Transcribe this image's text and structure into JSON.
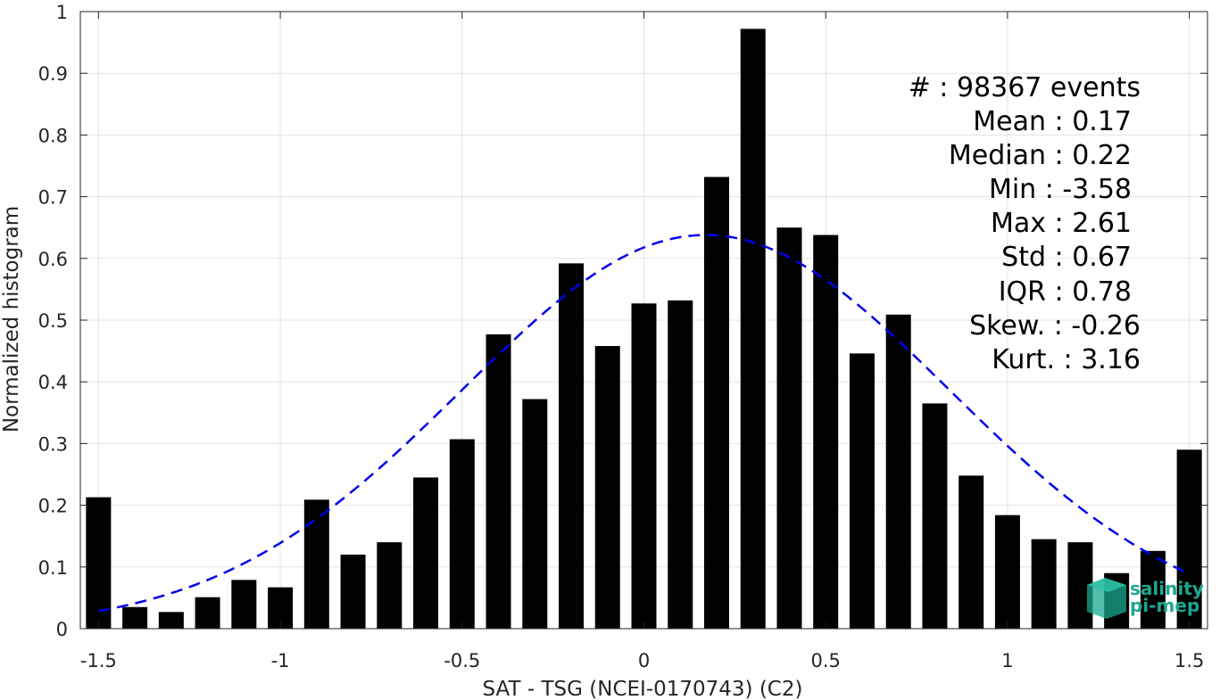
{
  "chart_data": {
    "type": "bar",
    "xlabel": "SAT - TSG (NCEI-0170743) (C2)",
    "ylabel": "Normalized histogram",
    "xlim": [
      -1.55,
      1.55
    ],
    "ylim": [
      0,
      1
    ],
    "grid": true,
    "x_ticks": [
      -1.5,
      -1,
      -0.5,
      0,
      0.5,
      1,
      1.5
    ],
    "x_tick_labels": [
      "-1.5",
      "-1",
      "-0.5",
      "0",
      "0.5",
      "1",
      "1.5"
    ],
    "y_ticks": [
      0,
      0.1,
      0.2,
      0.3,
      0.4,
      0.5,
      0.6,
      0.7,
      0.8,
      0.9,
      1
    ],
    "y_tick_labels": [
      "0",
      "0.1",
      "0.2",
      "0.3",
      "0.4",
      "0.5",
      "0.6",
      "0.7",
      "0.8",
      "0.9",
      "1"
    ],
    "bar_color": "#000000",
    "x": [
      -1.5,
      -1.4,
      -1.3,
      -1.2,
      -1.1,
      -1.0,
      -0.9,
      -0.8,
      -0.7,
      -0.6,
      -0.5,
      -0.4,
      -0.3,
      -0.2,
      -0.1,
      0.0,
      0.1,
      0.2,
      0.3,
      0.4,
      0.5,
      0.6,
      0.7,
      0.8,
      0.9,
      1.0,
      1.1,
      1.2,
      1.3,
      1.4,
      1.5
    ],
    "values": [
      0.213,
      0.035,
      0.027,
      0.051,
      0.079,
      0.067,
      0.209,
      0.12,
      0.14,
      0.245,
      0.307,
      0.477,
      0.372,
      0.592,
      0.458,
      0.527,
      0.532,
      0.732,
      0.972,
      0.65,
      0.638,
      0.446,
      0.509,
      0.365,
      0.248,
      0.184,
      0.145,
      0.14,
      0.09,
      0.126,
      0.29
    ],
    "fit_curve": {
      "type": "gaussian",
      "mean": 0.17,
      "std": 0.67,
      "peak": 0.638,
      "color": "#0000ee",
      "style": "dashed",
      "x_range": [
        -1.5,
        1.5
      ]
    },
    "annotations": [
      "#  : 98367 events",
      "Mean : 0.17",
      "Median : 0.22",
      "Min : -3.58",
      "Max : 2.61",
      "Std : 0.67",
      "IQR : 0.78",
      "Skew. : -0.26",
      "Kurt. : 3.16"
    ]
  },
  "logo": {
    "line1": "salinity",
    "line2": "pi-mep",
    "color": "#1aa88f"
  }
}
